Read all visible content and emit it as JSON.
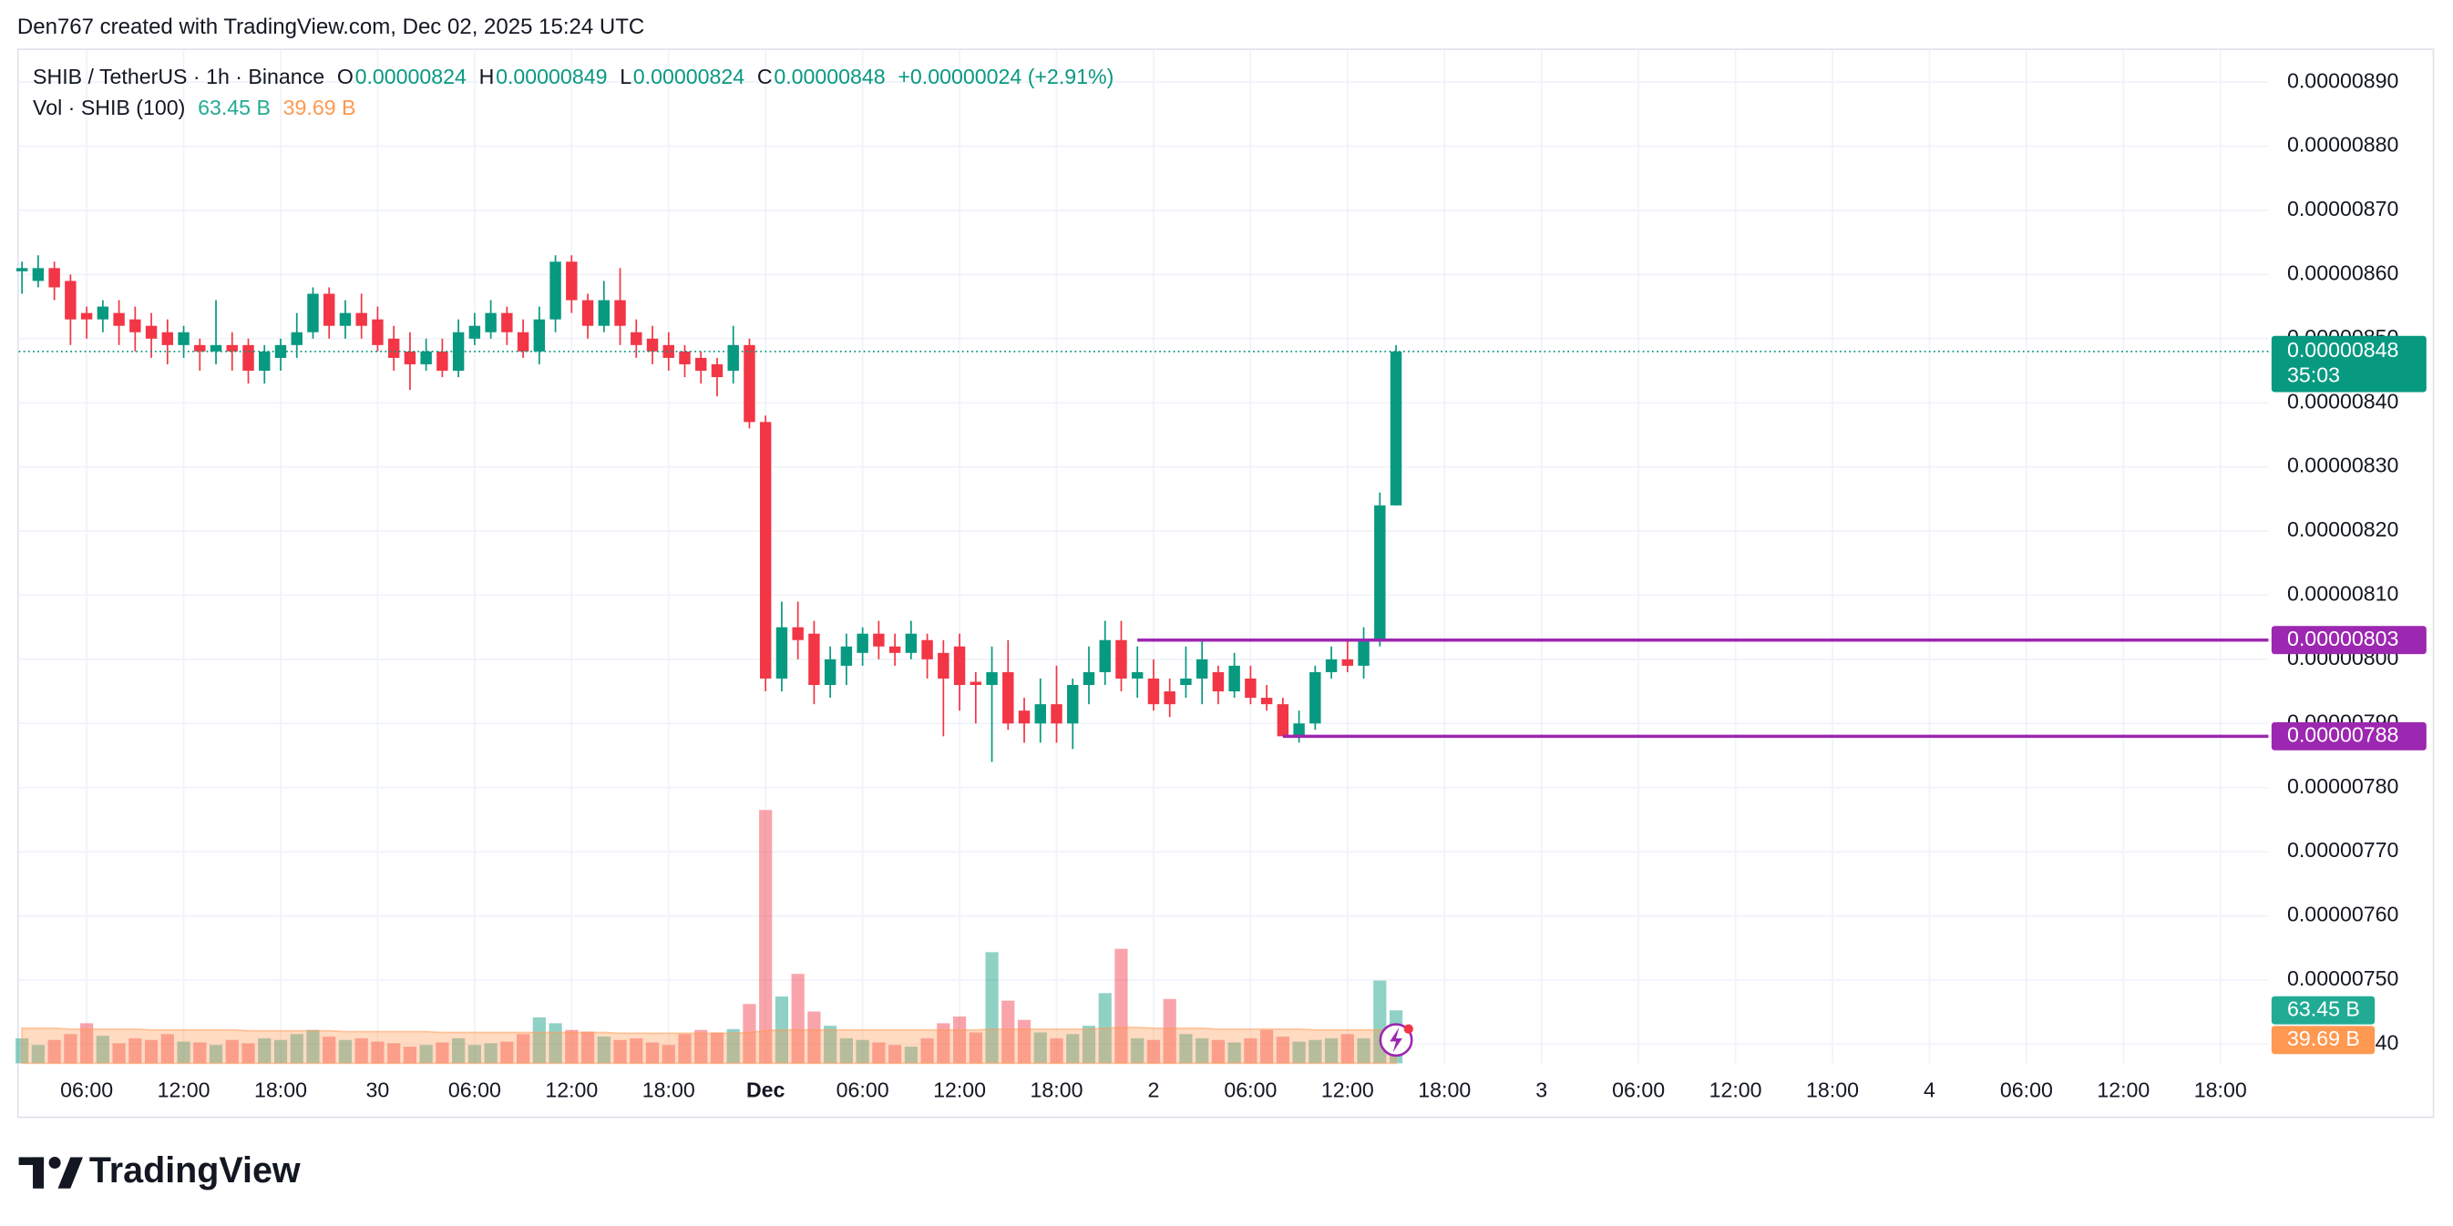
{
  "header": {
    "credit": "Den767 created with TradingView.com, Dec 02, 2025 15:24 UTC",
    "logo": "TradingView"
  },
  "chart_data": {
    "type": "candlestick",
    "legend": {
      "symbol": "SHIB / TetherUS · 1h · Binance",
      "ohlc": [
        {
          "key": "O",
          "value": "0.00000824"
        },
        {
          "key": "H",
          "value": "0.00000849"
        },
        {
          "key": "L",
          "value": "0.00000824"
        },
        {
          "key": "C",
          "value": "0.00000848"
        }
      ],
      "change": "+0.00000024 (+2.91%)"
    },
    "x": [
      "Nov 29 02:00",
      "Nov 29 03:00",
      "Nov 29 04:00",
      "Nov 29 05:00",
      "Nov 29 06:00",
      "Nov 29 07:00",
      "Nov 29 08:00",
      "Nov 29 09:00",
      "Nov 29 10:00",
      "Nov 29 11:00",
      "Nov 29 12:00",
      "Nov 29 13:00",
      "Nov 29 14:00",
      "Nov 29 15:00",
      "Nov 29 16:00",
      "Nov 29 17:00",
      "Nov 29 18:00",
      "Nov 29 19:00",
      "Nov 29 20:00",
      "Nov 29 21:00",
      "Nov 29 22:00",
      "Nov 29 23:00",
      "Nov 30 00:00",
      "Nov 30 01:00",
      "Nov 30 02:00",
      "Nov 30 03:00",
      "Nov 30 04:00",
      "Nov 30 05:00",
      "Nov 30 06:00",
      "Nov 30 07:00",
      "Nov 30 08:00",
      "Nov 30 09:00",
      "Nov 30 10:00",
      "Nov 30 11:00",
      "Nov 30 12:00",
      "Nov 30 13:00",
      "Nov 30 14:00",
      "Nov 30 15:00",
      "Nov 30 16:00",
      "Nov 30 17:00",
      "Nov 30 18:00",
      "Nov 30 19:00",
      "Nov 30 20:00",
      "Nov 30 21:00",
      "Nov 30 22:00",
      "Nov 30 23:00",
      "Dec 1 00:00",
      "Dec 1 01:00",
      "Dec 1 02:00",
      "Dec 1 03:00",
      "Dec 1 04:00",
      "Dec 1 05:00",
      "Dec 1 06:00",
      "Dec 1 07:00",
      "Dec 1 08:00",
      "Dec 1 09:00",
      "Dec 1 10:00",
      "Dec 1 11:00",
      "Dec 1 12:00",
      "Dec 1 13:00",
      "Dec 1 14:00",
      "Dec 1 15:00",
      "Dec 1 16:00",
      "Dec 1 17:00",
      "Dec 1 18:00",
      "Dec 1 19:00",
      "Dec 1 20:00",
      "Dec 1 21:00",
      "Dec 1 22:00",
      "Dec 1 23:00",
      "Dec 2 00:00",
      "Dec 2 01:00",
      "Dec 2 02:00",
      "Dec 2 03:00",
      "Dec 2 04:00",
      "Dec 2 05:00",
      "Dec 2 06:00",
      "Dec 2 07:00",
      "Dec 2 08:00",
      "Dec 2 09:00",
      "Dec 2 10:00",
      "Dec 2 11:00",
      "Dec 2 12:00",
      "Dec 2 13:00",
      "Dec 2 14:00",
      "Dec 2 15:00"
    ],
    "open": [
      8.605e-06,
      8.59e-06,
      8.61e-06,
      8.59e-06,
      8.54e-06,
      8.53e-06,
      8.54e-06,
      8.53e-06,
      8.52e-06,
      8.51e-06,
      8.49e-06,
      8.49e-06,
      8.48e-06,
      8.49e-06,
      8.49e-06,
      8.45e-06,
      8.47e-06,
      8.49e-06,
      8.51e-06,
      8.57e-06,
      8.52e-06,
      8.54e-06,
      8.53e-06,
      8.5e-06,
      8.48e-06,
      8.46e-06,
      8.48e-06,
      8.45e-06,
      8.5e-06,
      8.51e-06,
      8.54e-06,
      8.51e-06,
      8.48e-06,
      8.53e-06,
      8.62e-06,
      8.56e-06,
      8.52e-06,
      8.56e-06,
      8.51e-06,
      8.5e-06,
      8.49e-06,
      8.48e-06,
      8.47e-06,
      8.46e-06,
      8.45e-06,
      8.49e-06,
      8.37e-06,
      7.97e-06,
      8.05e-06,
      8.04e-06,
      7.96e-06,
      7.99e-06,
      8.01e-06,
      8.04e-06,
      8.02e-06,
      8.01e-06,
      8.03e-06,
      8.01e-06,
      8.02e-06,
      7.965e-06,
      7.96e-06,
      7.98e-06,
      7.92e-06,
      7.9e-06,
      7.93e-06,
      7.9e-06,
      7.96e-06,
      7.98e-06,
      8.03e-06,
      7.97e-06,
      7.97e-06,
      7.95e-06,
      7.96e-06,
      7.97e-06,
      7.98e-06,
      7.95e-06,
      7.97e-06,
      7.94e-06,
      7.93e-06,
      7.88e-06,
      7.9e-06,
      7.98e-06,
      8e-06,
      7.99e-06,
      8.03e-06,
      8.24e-06
    ],
    "high": [
      8.62e-06,
      8.63e-06,
      8.62e-06,
      8.6e-06,
      8.55e-06,
      8.56e-06,
      8.56e-06,
      8.55e-06,
      8.54e-06,
      8.53e-06,
      8.52e-06,
      8.5e-06,
      8.56e-06,
      8.51e-06,
      8.5e-06,
      8.49e-06,
      8.5e-06,
      8.54e-06,
      8.58e-06,
      8.58e-06,
      8.56e-06,
      8.57e-06,
      8.55e-06,
      8.52e-06,
      8.51e-06,
      8.5e-06,
      8.5e-06,
      8.53e-06,
      8.54e-06,
      8.56e-06,
      8.55e-06,
      8.53e-06,
      8.55e-06,
      8.63e-06,
      8.63e-06,
      8.57e-06,
      8.59e-06,
      8.61e-06,
      8.53e-06,
      8.52e-06,
      8.51e-06,
      8.49e-06,
      8.48e-06,
      8.47e-06,
      8.52e-06,
      8.5e-06,
      8.38e-06,
      8.09e-06,
      8.09e-06,
      8.06e-06,
      8.02e-06,
      8.04e-06,
      8.05e-06,
      8.06e-06,
      8.04e-06,
      8.06e-06,
      8.04e-06,
      8.03e-06,
      8.04e-06,
      7.98e-06,
      8.02e-06,
      8.03e-06,
      7.94e-06,
      7.97e-06,
      7.99e-06,
      7.97e-06,
      8.02e-06,
      8.06e-06,
      8.06e-06,
      8.02e-06,
      8e-06,
      7.97e-06,
      8.02e-06,
      8.03e-06,
      7.99e-06,
      8.01e-06,
      7.99e-06,
      7.96e-06,
      7.94e-06,
      7.92e-06,
      7.99e-06,
      8.02e-06,
      8.03e-06,
      8.05e-06,
      8.26e-06,
      8.49e-06
    ],
    "low": [
      8.57e-06,
      8.58e-06,
      8.56e-06,
      8.49e-06,
      8.5e-06,
      8.51e-06,
      8.49e-06,
      8.48e-06,
      8.47e-06,
      8.46e-06,
      8.47e-06,
      8.45e-06,
      8.46e-06,
      8.45e-06,
      8.43e-06,
      8.43e-06,
      8.45e-06,
      8.47e-06,
      8.5e-06,
      8.5e-06,
      8.5e-06,
      8.5e-06,
      8.48e-06,
      8.45e-06,
      8.42e-06,
      8.45e-06,
      8.44e-06,
      8.44e-06,
      8.49e-06,
      8.5e-06,
      8.49e-06,
      8.47e-06,
      8.46e-06,
      8.51e-06,
      8.54e-06,
      8.5e-06,
      8.51e-06,
      8.49e-06,
      8.47e-06,
      8.46e-06,
      8.45e-06,
      8.44e-06,
      8.43e-06,
      8.41e-06,
      8.43e-06,
      8.36e-06,
      7.95e-06,
      7.95e-06,
      8e-06,
      7.93e-06,
      7.94e-06,
      7.96e-06,
      7.99e-06,
      8e-06,
      7.99e-06,
      8e-06,
      7.97e-06,
      7.88e-06,
      7.92e-06,
      7.9e-06,
      7.84e-06,
      7.89e-06,
      7.87e-06,
      7.87e-06,
      7.87e-06,
      7.86e-06,
      7.93e-06,
      7.96e-06,
      7.95e-06,
      7.94e-06,
      7.92e-06,
      7.91e-06,
      7.94e-06,
      7.93e-06,
      7.93e-06,
      7.94e-06,
      7.93e-06,
      7.92e-06,
      7.88e-06,
      7.87e-06,
      7.89e-06,
      7.97e-06,
      7.98e-06,
      7.97e-06,
      8.02e-06,
      8.24e-06
    ],
    "close": [
      8.61e-06,
      8.61e-06,
      8.58e-06,
      8.53e-06,
      8.53e-06,
      8.55e-06,
      8.52e-06,
      8.51e-06,
      8.5e-06,
      8.49e-06,
      8.51e-06,
      8.48e-06,
      8.49e-06,
      8.48e-06,
      8.45e-06,
      8.48e-06,
      8.49e-06,
      8.51e-06,
      8.57e-06,
      8.52e-06,
      8.54e-06,
      8.52e-06,
      8.49e-06,
      8.47e-06,
      8.46e-06,
      8.48e-06,
      8.45e-06,
      8.51e-06,
      8.52e-06,
      8.54e-06,
      8.51e-06,
      8.48e-06,
      8.53e-06,
      8.62e-06,
      8.56e-06,
      8.52e-06,
      8.56e-06,
      8.52e-06,
      8.49e-06,
      8.48e-06,
      8.47e-06,
      8.46e-06,
      8.45e-06,
      8.44e-06,
      8.49e-06,
      8.37e-06,
      7.97e-06,
      8.05e-06,
      8.03e-06,
      7.96e-06,
      8e-06,
      8.02e-06,
      8.04e-06,
      8.02e-06,
      8.01e-06,
      8.04e-06,
      8e-06,
      7.97e-06,
      7.96e-06,
      7.96e-06,
      7.98e-06,
      7.9e-06,
      7.9e-06,
      7.93e-06,
      7.9e-06,
      7.96e-06,
      7.98e-06,
      8.03e-06,
      7.97e-06,
      7.98e-06,
      7.93e-06,
      7.93e-06,
      7.97e-06,
      8e-06,
      7.95e-06,
      7.99e-06,
      7.94e-06,
      7.93e-06,
      7.88e-06,
      7.9e-06,
      7.98e-06,
      8e-06,
      7.99e-06,
      8.03e-06,
      8.24e-06,
      8.48e-06
    ],
    "up_color": "#089981",
    "down_color": "#f23645",
    "xlim": [
      "Nov 29 01:48",
      "Dec 4 20:58"
    ],
    "xticks": [
      {
        "value": "Nov 29 06:00",
        "label": "06:00"
      },
      {
        "value": "Nov 29 12:00",
        "label": "12:00"
      },
      {
        "value": "Nov 29 18:00",
        "label": "18:00"
      },
      {
        "value": "Nov 30 00:00",
        "label": "30"
      },
      {
        "value": "Nov 30 06:00",
        "label": "06:00"
      },
      {
        "value": "Nov 30 12:00",
        "label": "12:00"
      },
      {
        "value": "Nov 30 18:00",
        "label": "18:00"
      },
      {
        "value": "Dec 1 00:00",
        "label": "Dec"
      },
      {
        "value": "Dec 1 06:00",
        "label": "06:00"
      },
      {
        "value": "Dec 1 12:00",
        "label": "12:00"
      },
      {
        "value": "Dec 1 18:00",
        "label": "18:00"
      },
      {
        "value": "Dec 2 00:00",
        "label": "2"
      },
      {
        "value": "Dec 2 06:00",
        "label": "06:00"
      },
      {
        "value": "Dec 2 12:00",
        "label": "12:00"
      },
      {
        "value": "Dec 2 18:00",
        "label": "18:00"
      },
      {
        "value": "Dec 3 00:00",
        "label": "3"
      },
      {
        "value": "Dec 3 06:00",
        "label": "06:00"
      },
      {
        "value": "Dec 3 12:00",
        "label": "12:00"
      },
      {
        "value": "Dec 3 18:00",
        "label": "18:00"
      },
      {
        "value": "Dec 4 00:00",
        "label": "4"
      },
      {
        "value": "Dec 4 06:00",
        "label": "06:00"
      },
      {
        "value": "Dec 4 12:00",
        "label": "12:00"
      },
      {
        "value": "Dec 4 18:00",
        "label": "18:00"
      }
    ],
    "ylim": [
      7.37e-06,
      8.95e-06
    ],
    "yticks": [
      {
        "value": 7.4e-06,
        "label": "0.00000740"
      },
      {
        "value": 7.5e-06,
        "label": "0.00000750"
      },
      {
        "value": 7.6e-06,
        "label": "0.00000760"
      },
      {
        "value": 7.7e-06,
        "label": "0.00000770"
      },
      {
        "value": 7.8e-06,
        "label": "0.00000780"
      },
      {
        "value": 7.9e-06,
        "label": "0.00000790"
      },
      {
        "value": 8e-06,
        "label": "0.00000800"
      },
      {
        "value": 8.1e-06,
        "label": "0.00000810"
      },
      {
        "value": 8.2e-06,
        "label": "0.00000820"
      },
      {
        "value": 8.3e-06,
        "label": "0.00000830"
      },
      {
        "value": 8.4e-06,
        "label": "0.00000840"
      },
      {
        "value": 8.5e-06,
        "label": "0.00000850"
      },
      {
        "value": 8.6e-06,
        "label": "0.00000860"
      },
      {
        "value": 8.7e-06,
        "label": "0.00000870"
      },
      {
        "value": 8.8e-06,
        "label": "0.00000880"
      },
      {
        "value": 8.9e-06,
        "label": "0.00000890"
      }
    ],
    "grid": true,
    "last_price": {
      "value": 8.48e-06,
      "label": "0.00000848",
      "countdown": "35:03"
    },
    "levels": [
      {
        "value": 8.03e-06,
        "label": "0.00000803",
        "from": "Dec 1 23:00",
        "color": "#9c27b0"
      },
      {
        "value": 7.88e-06,
        "label": "0.00000788",
        "from": "Dec 2 08:00",
        "color": "#9c27b0"
      }
    ],
    "volume": {
      "name": "Vol · SHIB (100)",
      "ylim": [
        0,
        1212
      ],
      "values": [
        30,
        22,
        28,
        35,
        48,
        33,
        24,
        30,
        28,
        35,
        26,
        25,
        22,
        28,
        24,
        30,
        28,
        35,
        40,
        32,
        28,
        30,
        26,
        24,
        20,
        22,
        25,
        30,
        22,
        24,
        26,
        35,
        55,
        48,
        40,
        38,
        32,
        28,
        30,
        25,
        22,
        35,
        40,
        37,
        41,
        71,
        303,
        80,
        107,
        62,
        45,
        30,
        28,
        25,
        22,
        20,
        30,
        48,
        56,
        37,
        133,
        75,
        52,
        37,
        30,
        35,
        45,
        84,
        137,
        30,
        28,
        77,
        35,
        30,
        28,
        25,
        30,
        40,
        32,
        26,
        28,
        30,
        35,
        30,
        99,
        63.45
      ],
      "last_label": "63.45 B",
      "last_color": "#22ab94",
      "ma_values": [
        42,
        42,
        42,
        41,
        41,
        41,
        41,
        41,
        40,
        40,
        40,
        40,
        40,
        40,
        39,
        39,
        39,
        39,
        39,
        39,
        38,
        38,
        38,
        38,
        38,
        38,
        37,
        37,
        37,
        37,
        37,
        37,
        37,
        37,
        37,
        37,
        37,
        36,
        36,
        36,
        36,
        36,
        36,
        36,
        36,
        37,
        39,
        40,
        40,
        40,
        40,
        40,
        40,
        40,
        40,
        40,
        40,
        40,
        40,
        40,
        41,
        41,
        41,
        41,
        41,
        41,
        41,
        42,
        43,
        43,
        42,
        42,
        42,
        42,
        41,
        41,
        41,
        41,
        41,
        41,
        40,
        40,
        40,
        40,
        40,
        39.69
      ],
      "ma_last_label": "39.69 B",
      "ma_color": "#ff9850"
    }
  }
}
